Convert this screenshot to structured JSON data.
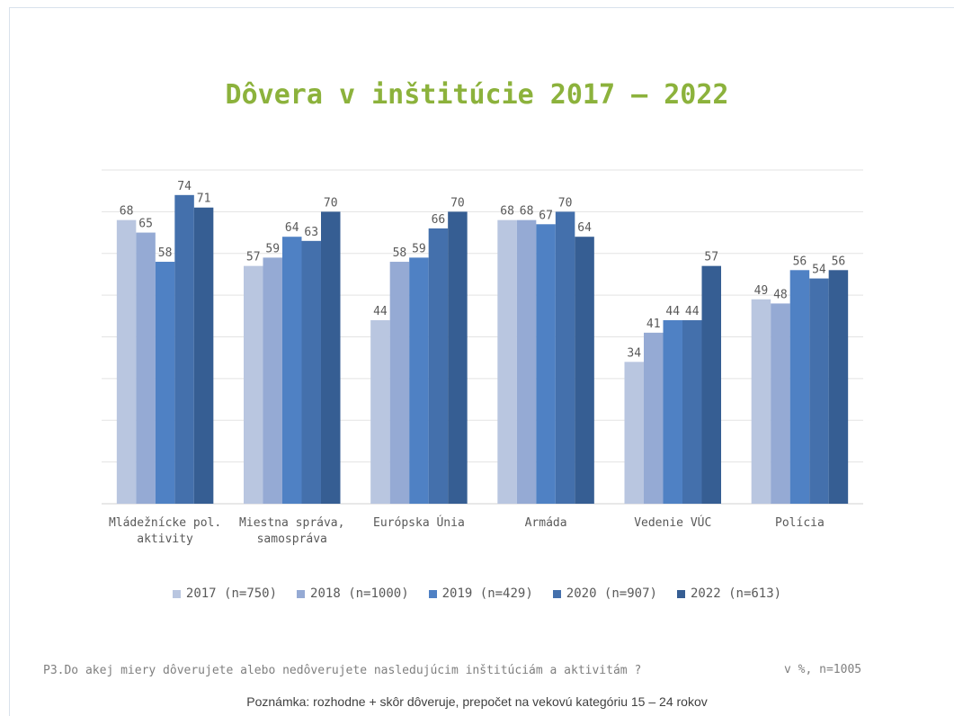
{
  "chart_data": {
    "type": "bar",
    "title": "Dôvera v inštitúcie 2017 – 2022",
    "categories": [
      [
        "Mládežnícke pol.",
        "aktivity"
      ],
      [
        "Miestna správa,",
        "samospráva"
      ],
      [
        "Európska Únia"
      ],
      [
        "Armáda"
      ],
      [
        "Vedenie VÚC"
      ],
      [
        "Polícia"
      ]
    ],
    "series": [
      {
        "name": "2017 (n=750)",
        "color": "#b9c6e0",
        "values": [
          68,
          57,
          44,
          68,
          34,
          49
        ]
      },
      {
        "name": "2018 (n=1000)",
        "color": "#95aad4",
        "values": [
          65,
          59,
          58,
          68,
          41,
          48
        ]
      },
      {
        "name": "2019 (n=429)",
        "color": "#4f81c4",
        "values": [
          58,
          64,
          59,
          67,
          44,
          56
        ]
      },
      {
        "name": "2020 (n=907)",
        "color": "#4470ac",
        "values": [
          74,
          63,
          66,
          70,
          44,
          54
        ]
      },
      {
        "name": "2022 (n=613)",
        "color": "#365e93",
        "values": [
          71,
          70,
          70,
          64,
          57,
          56
        ]
      }
    ],
    "ylim": [
      0,
      80
    ],
    "grid": true,
    "legend": "bottom"
  },
  "footer": {
    "question": "P3.Do akej miery dôverujete alebo nedôverujete nasledujúcim inštitúciám a aktivitám ?",
    "sample": "v %, n=1005",
    "note": "Poznámka: rozhodne + skôr dôveruje, prepočet na vekovú kategóriu 15 – 24 rokov"
  }
}
